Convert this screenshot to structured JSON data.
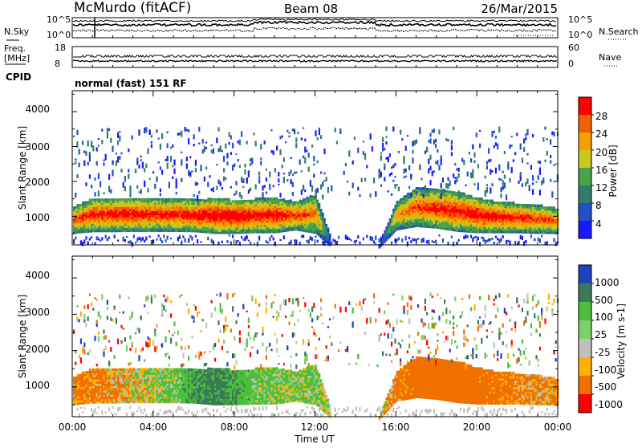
{
  "header": {
    "station": "McMurdo (fitACF)",
    "beam": "Beam 08",
    "date": "26/Mar/2015"
  },
  "noise_panel": {
    "left_label": "N.Sky",
    "right_label": "N.Search",
    "left_ticks": [
      "10^5",
      "10^0"
    ],
    "right_ticks": [
      "10^5",
      "10^0"
    ]
  },
  "freq_panel": {
    "left_label_1": "Freq.",
    "left_label_2": "[MHz]",
    "right_label": "Nave",
    "left_ticks": [
      "18",
      "8"
    ],
    "right_ticks": [
      "60",
      "0"
    ]
  },
  "cpid": {
    "label": "CPID",
    "text": "normal (fast) 151 RF"
  },
  "time_axis": {
    "title": "Time UT",
    "ticks": [
      "00:00",
      "04:00",
      "08:00",
      "12:00",
      "16:00",
      "20:00",
      "00:00"
    ]
  },
  "power_panel": {
    "ylabel": "Slant Range [km]",
    "yticks": [
      "1000",
      "2000",
      "3000",
      "4000"
    ],
    "colorbar_label": "Power [dB]",
    "colorbar_ticks": [
      "28",
      "24",
      "20",
      "16",
      "12",
      "8",
      "4"
    ]
  },
  "velocity_panel": {
    "ylabel": "Slant Range [km]",
    "yticks": [
      "1000",
      "2000",
      "3000",
      "4000"
    ],
    "colorbar_label": "Velocity [m s-1]",
    "colorbar_ticks": [
      "1000",
      "500",
      "100",
      "25",
      "-25",
      "-100",
      "-500",
      "-1000"
    ]
  },
  "chart_data": [
    {
      "type": "heatmap",
      "title": "Power",
      "xlabel": "Time UT",
      "ylabel": "Slant Range [km]",
      "x_ticks": [
        "00:00",
        "04:00",
        "08:00",
        "12:00",
        "16:00",
        "20:00",
        "00:00"
      ],
      "xlim_hours": [
        0,
        24
      ],
      "ylim": [
        180,
        4600
      ],
      "colorbar": {
        "label": "Power [dB]",
        "ticks": [
          4,
          8,
          12,
          16,
          20,
          24,
          28
        ],
        "range": [
          0,
          32
        ],
        "colors": [
          "#1a1aff",
          "#2350c8",
          "#2f7d6a",
          "#4aa24a",
          "#c8c820",
          "#f5a000",
          "#f06000",
          "#ff0000"
        ]
      },
      "echo_band": {
        "time_hours": [
          0,
          1,
          2,
          3,
          4,
          5,
          6,
          7,
          8,
          9,
          10,
          11,
          12,
          13,
          14,
          15,
          16,
          17,
          18,
          19,
          20,
          21,
          22,
          23,
          24
        ],
        "lower_km": [
          500,
          550,
          550,
          560,
          560,
          560,
          550,
          500,
          500,
          520,
          520,
          600,
          500,
          0,
          0,
          0,
          600,
          700,
          650,
          560,
          520,
          520,
          520,
          500,
          500
        ],
        "upper_km": [
          1250,
          1500,
          1500,
          1520,
          1500,
          1500,
          1450,
          1500,
          1450,
          1480,
          1500,
          1400,
          1600,
          0,
          0,
          0,
          1400,
          1800,
          1750,
          1700,
          1500,
          1400,
          1350,
          1300,
          1200
        ],
        "peak_power_db": [
          26,
          28,
          29,
          29,
          28,
          28,
          30,
          31,
          31,
          29,
          29,
          27,
          24,
          0,
          0,
          0,
          22,
          26,
          28,
          29,
          30,
          29,
          28,
          27,
          26
        ]
      }
    },
    {
      "type": "heatmap",
      "title": "Velocity",
      "xlabel": "Time UT",
      "ylabel": "Slant Range [km]",
      "x_ticks": [
        "00:00",
        "04:00",
        "08:00",
        "12:00",
        "16:00",
        "20:00",
        "00:00"
      ],
      "xlim_hours": [
        0,
        24
      ],
      "ylim": [
        180,
        4600
      ],
      "colorbar": {
        "label": "Velocity [m s-1]",
        "ticks": [
          1000,
          500,
          100,
          25,
          -25,
          -100,
          -500,
          -1000
        ],
        "colors": [
          "#2040c0",
          "#3a7a58",
          "#4cbf3a",
          "#7ed06a",
          "#c0c0c0",
          "#ffb000",
          "#f07000",
          "#ff0000"
        ]
      },
      "echo_band": {
        "time_hours": [
          0,
          1,
          2,
          3,
          4,
          5,
          6,
          7,
          8,
          9,
          10,
          11,
          12,
          13,
          14,
          15,
          16,
          17,
          18,
          19,
          20,
          21,
          22,
          23,
          24
        ],
        "lower_km": [
          500,
          550,
          550,
          560,
          560,
          560,
          550,
          500,
          500,
          520,
          520,
          600,
          500,
          0,
          0,
          0,
          600,
          700,
          650,
          560,
          520,
          520,
          520,
          500,
          500
        ],
        "upper_km": [
          1250,
          1500,
          1500,
          1520,
          1500,
          1500,
          1450,
          1500,
          1450,
          1480,
          1500,
          1400,
          1600,
          0,
          0,
          0,
          1400,
          1800,
          1750,
          1700,
          1500,
          1400,
          1350,
          1300,
          1200
        ],
        "velocity_ms": [
          -200,
          -150,
          -100,
          -50,
          50,
          100,
          300,
          400,
          300,
          100,
          80,
          60,
          100,
          0,
          0,
          0,
          -150,
          -250,
          -300,
          -300,
          -250,
          -200,
          -150,
          -100,
          -100
        ]
      }
    }
  ]
}
